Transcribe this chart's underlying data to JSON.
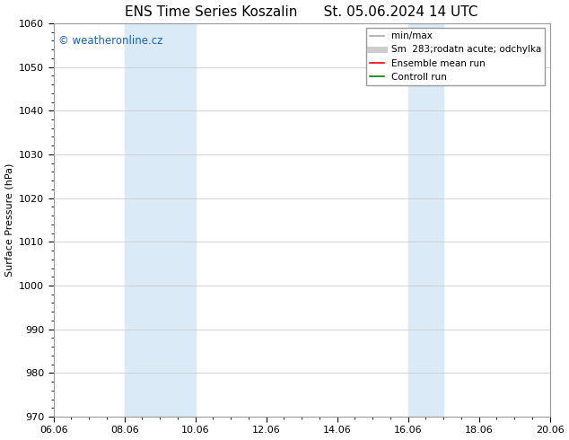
{
  "title": "ENS Time Series Koszalin      St. 05.06.2024 14 UTC",
  "ylabel": "Surface Pressure (hPa)",
  "ylim": [
    970,
    1060
  ],
  "yticks": [
    970,
    980,
    990,
    1000,
    1010,
    1020,
    1030,
    1040,
    1050,
    1060
  ],
  "xtick_labels": [
    "06.06",
    "08.06",
    "10.06",
    "12.06",
    "14.06",
    "16.06",
    "18.06",
    "20.06"
  ],
  "xtick_positions": [
    0,
    2,
    4,
    6,
    8,
    10,
    12,
    14
  ],
  "xlim": [
    0,
    14
  ],
  "shaded_bands": [
    {
      "x_start": 2,
      "x_end": 4,
      "color": "#daeaf7",
      "alpha": 1.0
    },
    {
      "x_start": 10,
      "x_end": 11,
      "color": "#daeaf7",
      "alpha": 1.0
    }
  ],
  "legend_entries": [
    {
      "label": "min/max",
      "color": "#aaaaaa",
      "linewidth": 1.2,
      "linestyle": "-"
    },
    {
      "label": "Sm  283;rodatn acute; odchylka",
      "color": "#cccccc",
      "linewidth": 5,
      "linestyle": "-"
    },
    {
      "label": "Ensemble mean run",
      "color": "red",
      "linewidth": 1.2,
      "linestyle": "-"
    },
    {
      "label": "Controll run",
      "color": "green",
      "linewidth": 1.2,
      "linestyle": "-"
    }
  ],
  "watermark_text": "© weatheronline.cz",
  "watermark_color": "#1a5fbd",
  "background_color": "#ffffff",
  "plot_bg_color": "#ffffff",
  "grid_color": "#cccccc",
  "title_fontsize": 11,
  "axis_label_fontsize": 8,
  "tick_fontsize": 8,
  "legend_fontsize": 7.5
}
